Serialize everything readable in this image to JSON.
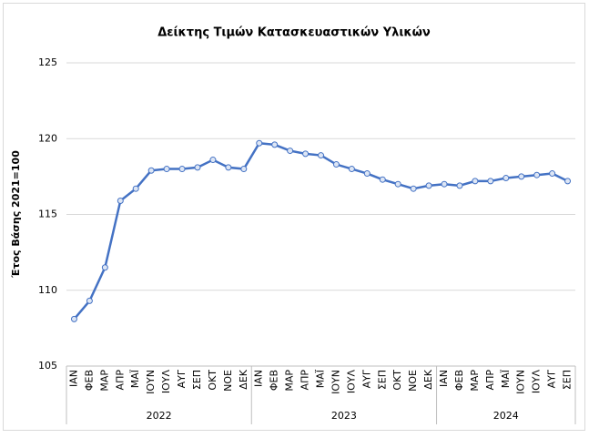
{
  "chart_data": {
    "type": "line",
    "title": "Δείκτης Τιμών Κατασκευαστικών Υλικών",
    "y_label": "Έτος Βάσης 2021=100",
    "groups": [
      {
        "label": "2022",
        "categories": [
          "ΙΑΝ",
          "ΦΕΒ",
          "ΜΑΡ",
          "ΑΠΡ",
          "ΜΑΪ",
          "ΙΟΥΝ",
          "ΙΟΥΛ",
          "ΑΥΓ",
          "ΣΕΠ",
          "ΟΚΤ",
          "ΝΟΕ",
          "ΔΕΚ"
        ]
      },
      {
        "label": "2023",
        "categories": [
          "ΙΑΝ",
          "ΦΕΒ",
          "ΜΑΡ",
          "ΑΠΡ",
          "ΜΑΪ",
          "ΙΟΥΝ",
          "ΙΟΥΛ",
          "ΑΥΓ",
          "ΣΕΠ",
          "ΟΚΤ",
          "ΝΟΕ",
          "ΔΕΚ"
        ]
      },
      {
        "label": "2024",
        "categories": [
          "ΙΑΝ",
          "ΦΕΒ",
          "ΜΑΡ",
          "ΑΠΡ",
          "ΜΑΪ",
          "ΙΟΥΝ",
          "ΙΟΥΛ",
          "ΑΥΓ",
          "ΣΕΠ"
        ]
      }
    ],
    "values": [
      108.1,
      109.3,
      111.5,
      115.9,
      116.7,
      117.9,
      118.0,
      118.0,
      118.1,
      118.6,
      118.1,
      118.0,
      119.7,
      119.6,
      119.2,
      119.0,
      118.9,
      118.3,
      118.0,
      117.7,
      117.3,
      117.0,
      116.7,
      116.9,
      117.0,
      116.9,
      117.2,
      117.2,
      117.4,
      117.5,
      117.6,
      117.7,
      117.2
    ],
    "color": "#4472c4",
    "ylim": [
      105,
      125
    ],
    "yticks": [
      105,
      110,
      115,
      120,
      125
    ],
    "grid": true
  }
}
